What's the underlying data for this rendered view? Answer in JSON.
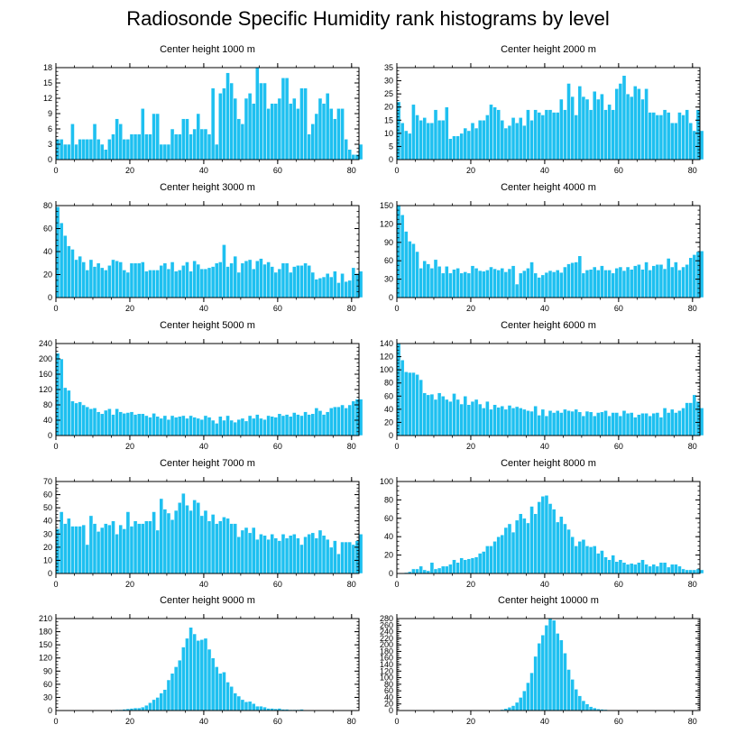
{
  "figure_title": "Radiosonde Specific Humidity rank histograms by level",
  "bar_color": "#1ec0f0",
  "bar_edge_color": "#ffffff",
  "chart_data": [
    {
      "type": "bar",
      "title": "Center height 1000 m",
      "xlabel": "",
      "ylabel": "",
      "xlim": [
        0,
        82
      ],
      "ylim": [
        0,
        18
      ],
      "yticks": [
        0,
        3,
        6,
        9,
        12,
        15,
        18
      ],
      "xticks": [
        0,
        20,
        40,
        60,
        80
      ],
      "values": [
        4,
        4,
        3,
        3,
        7,
        3,
        4,
        4,
        4,
        4,
        7,
        4,
        3,
        2,
        4,
        5,
        8,
        7,
        4,
        4,
        5,
        5,
        5,
        10,
        5,
        5,
        9,
        9,
        3,
        3,
        3,
        6,
        5,
        5,
        8,
        8,
        5,
        6,
        9,
        6,
        6,
        5,
        14,
        3,
        13,
        14,
        17,
        15,
        12,
        8,
        7,
        12,
        13,
        11,
        18,
        15,
        15,
        10,
        11,
        11,
        12,
        16,
        16,
        11,
        12,
        10,
        14,
        14,
        5,
        7,
        9,
        12,
        11,
        13,
        10,
        8,
        10,
        10,
        4,
        2,
        1,
        1,
        3
      ]
    },
    {
      "type": "bar",
      "title": "Center height 2000 m",
      "xlabel": "",
      "ylabel": "",
      "xlim": [
        0,
        82
      ],
      "ylim": [
        0,
        35
      ],
      "yticks": [
        0,
        5,
        10,
        15,
        20,
        25,
        30,
        35
      ],
      "xticks": [
        0,
        20,
        40,
        60,
        80
      ],
      "values": [
        22,
        14,
        11,
        10,
        21,
        17,
        15,
        16,
        14,
        14,
        19,
        15,
        15,
        20,
        8,
        9,
        9,
        10,
        12,
        11,
        14,
        12,
        15,
        15,
        17,
        21,
        20,
        19,
        15,
        12,
        13,
        16,
        14,
        16,
        13,
        19,
        15,
        19,
        18,
        17,
        19,
        19,
        18,
        18,
        23,
        19,
        29,
        24,
        17,
        28,
        24,
        23,
        19,
        26,
        23,
        25,
        19,
        21,
        19,
        27,
        29,
        32,
        25,
        24,
        28,
        27,
        23,
        27,
        18,
        18,
        17,
        17,
        19,
        18,
        14,
        14,
        18,
        17,
        19,
        14,
        11,
        19,
        11
      ]
    },
    {
      "type": "bar",
      "title": "Center height 3000 m",
      "xlabel": "",
      "ylabel": "",
      "xlim": [
        0,
        82
      ],
      "ylim": [
        0,
        80
      ],
      "yticks": [
        0,
        20,
        40,
        60,
        80
      ],
      "xticks": [
        0,
        20,
        40,
        60,
        80
      ],
      "values": [
        79,
        65,
        54,
        45,
        42,
        33,
        36,
        31,
        24,
        33,
        27,
        30,
        26,
        24,
        28,
        33,
        32,
        31,
        24,
        22,
        30,
        30,
        30,
        31,
        23,
        24,
        24,
        24,
        28,
        30,
        25,
        31,
        23,
        24,
        28,
        31,
        23,
        32,
        29,
        25,
        25,
        26,
        27,
        30,
        31,
        46,
        27,
        30,
        36,
        22,
        30,
        32,
        33,
        25,
        32,
        34,
        29,
        31,
        27,
        22,
        25,
        30,
        30,
        22,
        27,
        28,
        28,
        30,
        28,
        22,
        16,
        17,
        18,
        21,
        18,
        23,
        13,
        21,
        14,
        15,
        26,
        21,
        23
      ]
    },
    {
      "type": "bar",
      "title": "Center height 4000 m",
      "xlabel": "",
      "ylabel": "",
      "xlim": [
        0,
        82
      ],
      "ylim": [
        0,
        150
      ],
      "yticks": [
        0,
        30,
        60,
        90,
        120,
        150
      ],
      "xticks": [
        0,
        20,
        40,
        60,
        80
      ],
      "values": [
        150,
        135,
        108,
        92,
        88,
        75,
        48,
        60,
        55,
        48,
        62,
        51,
        40,
        51,
        40,
        46,
        48,
        40,
        42,
        40,
        52,
        48,
        44,
        43,
        45,
        50,
        47,
        45,
        48,
        42,
        47,
        52,
        22,
        40,
        44,
        48,
        58,
        40,
        33,
        37,
        41,
        44,
        42,
        45,
        41,
        50,
        55,
        57,
        58,
        68,
        40,
        45,
        46,
        50,
        45,
        52,
        45,
        45,
        40,
        48,
        50,
        44,
        50,
        46,
        52,
        54,
        46,
        58,
        45,
        52,
        54,
        54,
        47,
        64,
        50,
        58,
        45,
        50,
        54,
        65,
        70,
        75,
        76
      ]
    },
    {
      "type": "bar",
      "title": "Center height 5000 m",
      "xlabel": "",
      "ylabel": "",
      "xlim": [
        0,
        82
      ],
      "ylim": [
        0,
        240
      ],
      "yticks": [
        0,
        40,
        80,
        120,
        160,
        200,
        240
      ],
      "xticks": [
        0,
        20,
        40,
        60,
        80
      ],
      "values": [
        215,
        200,
        125,
        118,
        90,
        85,
        88,
        80,
        75,
        70,
        72,
        62,
        57,
        66,
        70,
        55,
        70,
        62,
        58,
        60,
        62,
        55,
        57,
        57,
        52,
        48,
        58,
        50,
        45,
        52,
        42,
        52,
        48,
        50,
        52,
        45,
        52,
        48,
        45,
        42,
        52,
        48,
        40,
        32,
        50,
        40,
        52,
        40,
        35,
        42,
        45,
        38,
        52,
        45,
        55,
        45,
        42,
        52,
        50,
        48,
        57,
        52,
        55,
        50,
        60,
        55,
        52,
        62,
        55,
        57,
        72,
        65,
        55,
        62,
        72,
        75,
        75,
        80,
        72,
        80,
        90,
        95,
        95
      ]
    },
    {
      "type": "bar",
      "title": "Center height 6000 m",
      "xlabel": "",
      "ylabel": "",
      "xlim": [
        0,
        82
      ],
      "ylim": [
        0,
        140
      ],
      "yticks": [
        0,
        20,
        40,
        60,
        80,
        100,
        120,
        140
      ],
      "xticks": [
        0,
        20,
        40,
        60,
        80
      ],
      "values": [
        140,
        115,
        97,
        96,
        96,
        93,
        85,
        65,
        62,
        63,
        55,
        65,
        60,
        55,
        52,
        64,
        55,
        48,
        60,
        47,
        52,
        55,
        48,
        42,
        52,
        40,
        47,
        43,
        45,
        40,
        46,
        42,
        44,
        42,
        40,
        38,
        37,
        45,
        31,
        40,
        30,
        38,
        35,
        38,
        35,
        40,
        38,
        37,
        40,
        36,
        30,
        37,
        36,
        30,
        35,
        36,
        38,
        30,
        35,
        35,
        30,
        38,
        34,
        35,
        28,
        32,
        34,
        34,
        30,
        34,
        35,
        28,
        42,
        35,
        40,
        35,
        38,
        42,
        50,
        50,
        62,
        52,
        42
      ]
    },
    {
      "type": "bar",
      "title": "Center height 7000 m",
      "xlabel": "",
      "ylabel": "",
      "xlim": [
        0,
        82
      ],
      "ylim": [
        0,
        70
      ],
      "yticks": [
        0,
        10,
        20,
        30,
        40,
        50,
        60,
        70
      ],
      "xticks": [
        0,
        20,
        40,
        60,
        80
      ],
      "values": [
        34,
        47,
        38,
        42,
        36,
        36,
        36,
        37,
        22,
        44,
        38,
        32,
        35,
        38,
        37,
        40,
        30,
        37,
        34,
        47,
        36,
        40,
        38,
        38,
        40,
        40,
        47,
        33,
        57,
        49,
        46,
        41,
        48,
        54,
        61,
        52,
        48,
        56,
        54,
        44,
        48,
        40,
        45,
        38,
        40,
        43,
        42,
        38,
        38,
        28,
        33,
        35,
        31,
        35,
        26,
        30,
        29,
        26,
        30,
        27,
        25,
        30,
        27,
        29,
        30,
        27,
        22,
        28,
        30,
        31,
        27,
        33,
        29,
        26,
        20,
        25,
        15,
        24,
        24,
        24,
        22,
        25,
        30
      ]
    },
    {
      "type": "bar",
      "title": "Center height 8000 m",
      "xlabel": "",
      "ylabel": "",
      "xlim": [
        0,
        82
      ],
      "ylim": [
        0,
        100
      ],
      "yticks": [
        0,
        20,
        40,
        60,
        80,
        100
      ],
      "xticks": [
        0,
        20,
        40,
        60,
        80
      ],
      "values": [
        0,
        0,
        1,
        2,
        5,
        5,
        8,
        4,
        3,
        12,
        5,
        6,
        8,
        8,
        10,
        15,
        12,
        17,
        15,
        16,
        17,
        18,
        22,
        24,
        30,
        30,
        35,
        40,
        42,
        50,
        54,
        45,
        58,
        65,
        60,
        55,
        73,
        65,
        78,
        84,
        85,
        76,
        70,
        56,
        62,
        54,
        48,
        40,
        30,
        35,
        37,
        30,
        29,
        30,
        22,
        25,
        18,
        15,
        20,
        13,
        15,
        12,
        10,
        11,
        10,
        12,
        15,
        10,
        8,
        10,
        8,
        12,
        12,
        7,
        10,
        10,
        8,
        5,
        4,
        4,
        4,
        5,
        4
      ]
    },
    {
      "type": "bar",
      "title": "Center height 9000 m",
      "xlabel": "",
      "ylabel": "",
      "xlim": [
        0,
        82
      ],
      "ylim": [
        0,
        210
      ],
      "yticks": [
        0,
        30,
        60,
        90,
        120,
        150,
        180,
        210
      ],
      "xticks": [
        0,
        20,
        40,
        60,
        80
      ],
      "values": [
        0,
        0,
        0,
        0,
        0,
        0,
        0,
        0,
        0,
        0,
        0,
        0,
        0,
        1,
        1,
        1,
        2,
        2,
        3,
        4,
        5,
        6,
        6,
        8,
        12,
        18,
        25,
        30,
        40,
        48,
        70,
        85,
        100,
        115,
        145,
        165,
        190,
        175,
        160,
        162,
        165,
        140,
        120,
        100,
        85,
        88,
        65,
        55,
        40,
        33,
        25,
        20,
        21,
        16,
        10,
        10,
        8,
        5,
        5,
        4,
        5,
        3,
        3,
        2,
        2,
        2,
        3,
        1,
        1,
        1,
        0,
        0,
        0,
        0,
        0,
        0,
        0,
        0,
        0,
        0,
        0,
        0,
        0
      ]
    },
    {
      "type": "bar",
      "title": "Center height 10000 m",
      "xlabel": "",
      "ylabel": "",
      "xlim": [
        0,
        82
      ],
      "ylim": [
        0,
        280
      ],
      "yticks": [
        0,
        20,
        40,
        60,
        80,
        100,
        120,
        140,
        160,
        180,
        200,
        220,
        240,
        260,
        280
      ],
      "xticks": [
        0,
        20,
        40,
        60,
        80
      ],
      "values": [
        0,
        0,
        0,
        0,
        0,
        0,
        0,
        0,
        0,
        0,
        0,
        0,
        0,
        0,
        0,
        0,
        0,
        0,
        0,
        0,
        0,
        0,
        0,
        0,
        0,
        0,
        1,
        2,
        3,
        6,
        10,
        15,
        25,
        40,
        60,
        85,
        115,
        165,
        205,
        230,
        260,
        280,
        275,
        235,
        215,
        175,
        125,
        95,
        65,
        45,
        30,
        20,
        12,
        8,
        5,
        4,
        3,
        2,
        1,
        1,
        0,
        0,
        0,
        0,
        0,
        0,
        0,
        0,
        0,
        0,
        0,
        0,
        0,
        0,
        0,
        0,
        0,
        0,
        0,
        0,
        0,
        0,
        0
      ]
    }
  ]
}
